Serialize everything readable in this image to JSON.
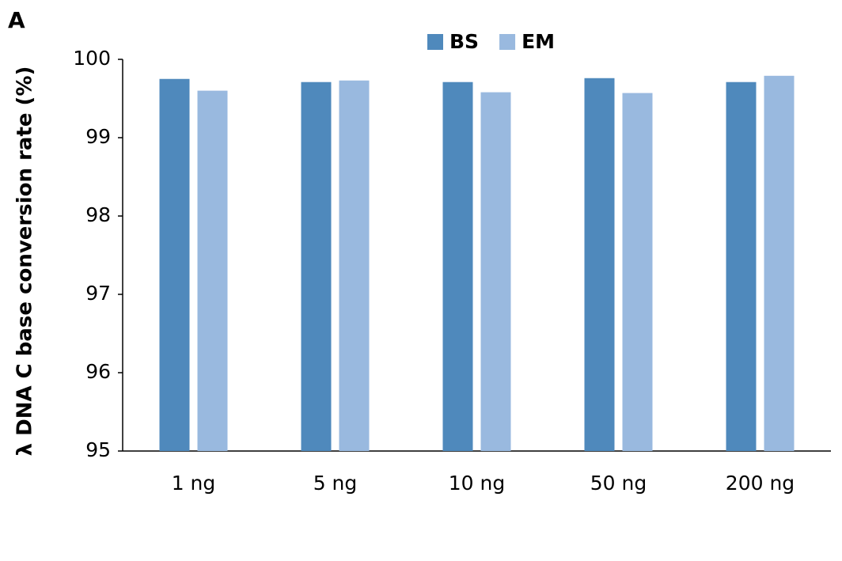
{
  "chart_data": {
    "type": "bar",
    "panel_label": "A",
    "y_label": "λ DNA C base conversion rate (%)",
    "categories": [
      "1 ng",
      "5 ng",
      "10 ng",
      "50 ng",
      "200 ng"
    ],
    "series": [
      {
        "name": "BS",
        "color": "#4f89bc",
        "values": [
          99.75,
          99.71,
          99.71,
          99.76,
          99.71
        ]
      },
      {
        "name": "EM",
        "color": "#99b9df",
        "values": [
          99.6,
          99.73,
          99.58,
          99.57,
          99.79
        ]
      }
    ],
    "ylim": [
      95,
      100
    ],
    "yticks": [
      95,
      96,
      97,
      98,
      99,
      100
    ],
    "grid": false,
    "legend": "top"
  }
}
